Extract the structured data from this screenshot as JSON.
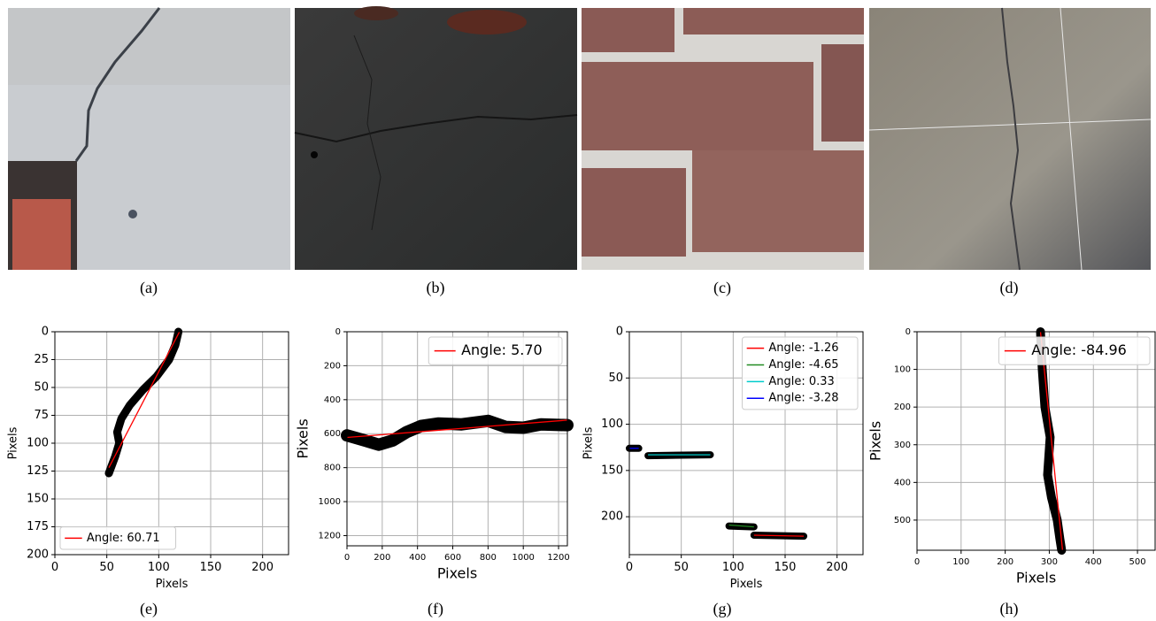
{
  "captions": [
    "(a)",
    "(b)",
    "(c)",
    "(d)",
    "(e)",
    "(f)",
    "(g)",
    "(h)"
  ],
  "chart_data": [
    {
      "type": "line",
      "xlabel": "Pixels",
      "ylabel": "Pixels",
      "xlim": [
        0,
        225
      ],
      "ylim": [
        200,
        0
      ],
      "xticks": [
        0,
        50,
        100,
        150,
        200
      ],
      "yticks": [
        0,
        25,
        50,
        75,
        100,
        125,
        150,
        175,
        200
      ],
      "grid": true,
      "legend": "lower left",
      "mask": {
        "color": "#000000",
        "x": [
          52,
          58,
          62,
          60,
          64,
          72,
          85,
          98,
          110,
          116,
          119
        ],
        "y": [
          127,
          112,
          100,
          90,
          78,
          66,
          52,
          40,
          25,
          12,
          0
        ]
      },
      "series": [
        {
          "name": "Angle: 60.71",
          "color": "#ff0000",
          "x": [
            52,
            120
          ],
          "y": [
            122,
            0
          ]
        }
      ]
    },
    {
      "type": "line",
      "xlabel": "Pixels",
      "ylabel": "Pixels",
      "xlim": [
        0,
        1250
      ],
      "ylim": [
        1260,
        0
      ],
      "xticks": [
        0,
        200,
        400,
        600,
        800,
        1000,
        1200
      ],
      "yticks": [
        0,
        200,
        400,
        600,
        800,
        1000,
        1200
      ],
      "grid": true,
      "legend": "upper right",
      "mask": {
        "color": "#000000",
        "x": [
          0,
          100,
          180,
          260,
          340,
          420,
          520,
          650,
          800,
          900,
          1000,
          1100,
          1250
        ],
        "y": [
          610,
          640,
          665,
          640,
          590,
          555,
          540,
          545,
          525,
          560,
          565,
          545,
          550
        ]
      },
      "series": [
        {
          "name": "Angle: 5.70",
          "color": "#ff0000",
          "x": [
            0,
            1250
          ],
          "y": [
            622,
            520
          ]
        }
      ]
    },
    {
      "type": "line",
      "xlabel": "Pixels",
      "ylabel": "Pixels",
      "xlim": [
        0,
        225
      ],
      "ylim": [
        241,
        0
      ],
      "xticks": [
        0,
        50,
        100,
        150,
        200
      ],
      "yticks": [
        0,
        50,
        100,
        150,
        200
      ],
      "grid": true,
      "legend": "upper right",
      "mask": {
        "color": "#000000",
        "x": [
          0,
          9,
          null,
          18,
          78,
          null,
          96,
          120,
          null,
          120,
          168
        ],
        "y": [
          126,
          126,
          null,
          134,
          133,
          null,
          210,
          211,
          null,
          220,
          221
        ]
      },
      "series": [
        {
          "name": "Angle: -1.26",
          "color": "#ff0000",
          "x": [
            120,
            168
          ],
          "y": [
            220,
            221
          ]
        },
        {
          "name": "Angle: -4.65",
          "color": "#228b22",
          "x": [
            96,
            120
          ],
          "y": [
            209,
            211
          ]
        },
        {
          "name": "Angle: 0.33",
          "color": "#00cccc",
          "x": [
            18,
            78
          ],
          "y": [
            133,
            133
          ]
        },
        {
          "name": "Angle: -3.28",
          "color": "#0000ff",
          "x": [
            0,
            9
          ],
          "y": [
            126,
            126
          ]
        }
      ]
    },
    {
      "type": "line",
      "xlabel": "Pixels",
      "ylabel": "Pixels",
      "xlim": [
        0,
        540
      ],
      "ylim": [
        580,
        0
      ],
      "xticks": [
        0,
        100,
        200,
        300,
        400,
        500
      ],
      "yticks": [
        0,
        100,
        200,
        300,
        400,
        500
      ],
      "grid": true,
      "legend": "upper right",
      "mask": {
        "color": "#000000",
        "x": [
          280,
          284,
          290,
          302,
          296,
          305,
          318,
          324,
          328
        ],
        "y": [
          0,
          100,
          200,
          280,
          380,
          440,
          500,
          550,
          580
        ]
      },
      "series": [
        {
          "name": "Angle: -84.96",
          "color": "#ff0000",
          "x": [
            280,
            330
          ],
          "y": [
            0,
            580
          ]
        }
      ]
    }
  ]
}
